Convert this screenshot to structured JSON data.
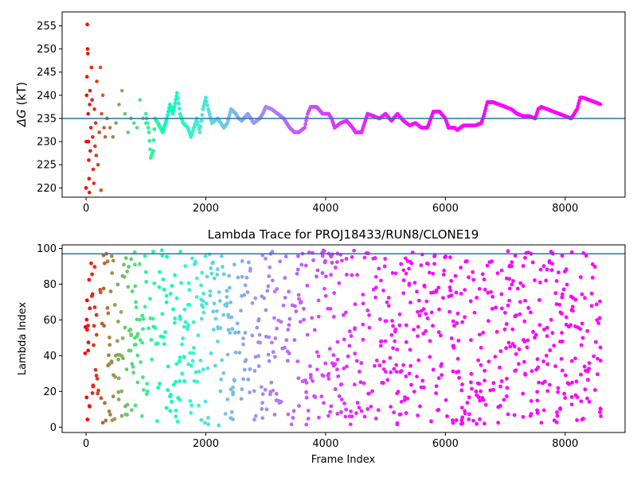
{
  "chart_data": [
    {
      "type": "scatter",
      "title": "",
      "xlabel": "",
      "ylabel_symbol": "ΔG",
      "ylabel_unit": " (kT)",
      "xlim": [
        -400,
        9000
      ],
      "ylim": [
        218,
        258
      ],
      "xticks": [
        0,
        2000,
        4000,
        6000,
        8000
      ],
      "yticks": [
        220,
        225,
        230,
        235,
        240,
        245,
        250,
        255
      ],
      "reference_line": 235,
      "reference_color": "#1f77b4",
      "colormap": "rainbow",
      "x_max": 8600,
      "scatter_early_points": [
        [
          0,
          220
        ],
        [
          5,
          230
        ],
        [
          10,
          240
        ],
        [
          15,
          244
        ],
        [
          20,
          255.3
        ],
        [
          25,
          250
        ],
        [
          30,
          249
        ],
        [
          35,
          236
        ],
        [
          40,
          230
        ],
        [
          45,
          226
        ],
        [
          50,
          222
        ],
        [
          55,
          219
        ],
        [
          60,
          238
        ],
        [
          65,
          241
        ],
        [
          70,
          228
        ],
        [
          80,
          233
        ],
        [
          90,
          246
        ],
        [
          100,
          239
        ],
        [
          110,
          231
        ],
        [
          120,
          224
        ],
        [
          130,
          221
        ],
        [
          140,
          237
        ],
        [
          150,
          229
        ],
        [
          160,
          234
        ],
        [
          170,
          227
        ],
        [
          180,
          243
        ],
        [
          200,
          225
        ],
        [
          220,
          232
        ],
        [
          240,
          246
        ],
        [
          250,
          219.5
        ],
        [
          260,
          236
        ],
        [
          280,
          240
        ],
        [
          300,
          233
        ],
        [
          320,
          231
        ],
        [
          350,
          235
        ],
        [
          400,
          233
        ],
        [
          450,
          231
        ],
        [
          500,
          234
        ],
        [
          550,
          238
        ],
        [
          600,
          241
        ],
        [
          650,
          236
        ],
        [
          700,
          232
        ],
        [
          750,
          235
        ],
        [
          800,
          234
        ],
        [
          850,
          233
        ],
        [
          900,
          239
        ],
        [
          950,
          235
        ],
        [
          1000,
          234
        ]
      ],
      "trace_points": [
        [
          1000,
          236
        ],
        [
          1050,
          232
        ],
        [
          1080,
          226.5
        ],
        [
          1120,
          228
        ],
        [
          1150,
          235
        ],
        [
          1200,
          234
        ],
        [
          1280,
          232
        ],
        [
          1350,
          235
        ],
        [
          1400,
          238
        ],
        [
          1450,
          236
        ],
        [
          1520,
          240.5
        ],
        [
          1570,
          236
        ],
        [
          1620,
          234
        ],
        [
          1700,
          233
        ],
        [
          1750,
          231
        ],
        [
          1800,
          233
        ],
        [
          1850,
          235
        ],
        [
          1900,
          232
        ],
        [
          1950,
          237
        ],
        [
          2000,
          239.5
        ],
        [
          2040,
          237
        ],
        [
          2100,
          234
        ],
        [
          2200,
          235
        ],
        [
          2300,
          233
        ],
        [
          2360,
          234
        ],
        [
          2420,
          237
        ],
        [
          2500,
          236
        ],
        [
          2550,
          235
        ],
        [
          2600,
          234.5
        ],
        [
          2700,
          236
        ],
        [
          2800,
          234
        ],
        [
          2900,
          235
        ],
        [
          2950,
          236
        ],
        [
          3000,
          237.5
        ],
        [
          3100,
          237
        ],
        [
          3200,
          236
        ],
        [
          3300,
          235
        ],
        [
          3400,
          233
        ],
        [
          3480,
          232
        ],
        [
          3550,
          232
        ],
        [
          3650,
          233
        ],
        [
          3700,
          236
        ],
        [
          3750,
          237.5
        ],
        [
          3850,
          237.5
        ],
        [
          3950,
          236
        ],
        [
          4050,
          236
        ],
        [
          4100,
          235
        ],
        [
          4150,
          233
        ],
        [
          4250,
          234
        ],
        [
          4350,
          234.5
        ],
        [
          4450,
          233
        ],
        [
          4500,
          232
        ],
        [
          4600,
          232
        ],
        [
          4700,
          236
        ],
        [
          4800,
          235.5
        ],
        [
          4900,
          235
        ],
        [
          5000,
          236
        ],
        [
          5100,
          234.5
        ],
        [
          5200,
          236
        ],
        [
          5300,
          234.5
        ],
        [
          5400,
          233.5
        ],
        [
          5500,
          234
        ],
        [
          5600,
          233
        ],
        [
          5700,
          233
        ],
        [
          5800,
          236.5
        ],
        [
          5900,
          236.5
        ],
        [
          6000,
          235
        ],
        [
          6050,
          233
        ],
        [
          6150,
          233
        ],
        [
          6200,
          232.5
        ],
        [
          6300,
          233.5
        ],
        [
          6400,
          233.5
        ],
        [
          6500,
          233.5
        ],
        [
          6600,
          234
        ],
        [
          6650,
          236
        ],
        [
          6700,
          238.5
        ],
        [
          6800,
          238.5
        ],
        [
          6900,
          238
        ],
        [
          7000,
          237.5
        ],
        [
          7100,
          237
        ],
        [
          7200,
          236
        ],
        [
          7300,
          235.5
        ],
        [
          7400,
          235.5
        ],
        [
          7500,
          235
        ],
        [
          7550,
          237
        ],
        [
          7600,
          237.5
        ],
        [
          7700,
          237
        ],
        [
          7800,
          236.5
        ],
        [
          7900,
          236
        ],
        [
          8000,
          235.5
        ],
        [
          8100,
          235
        ],
        [
          8200,
          237
        ],
        [
          8250,
          239.5
        ],
        [
          8300,
          239.5
        ],
        [
          8400,
          239
        ],
        [
          8500,
          238.5
        ],
        [
          8600,
          238
        ]
      ]
    },
    {
      "type": "scatter",
      "title": "Lambda Trace for PROJ18433/RUN8/CLONE19",
      "xlabel": "Frame Index",
      "ylabel": "Lambda Index",
      "xlim": [
        -400,
        9000
      ],
      "ylim": [
        -3,
        102
      ],
      "xticks": [
        0,
        2000,
        4000,
        6000,
        8000
      ],
      "yticks": [
        0,
        20,
        40,
        60,
        80,
        100
      ],
      "reference_line": 97,
      "reference_color": "#1f77b4",
      "colormap": "rainbow",
      "x_max": 8600,
      "y_range": [
        1,
        99
      ],
      "column_step_frames": 50
    }
  ]
}
